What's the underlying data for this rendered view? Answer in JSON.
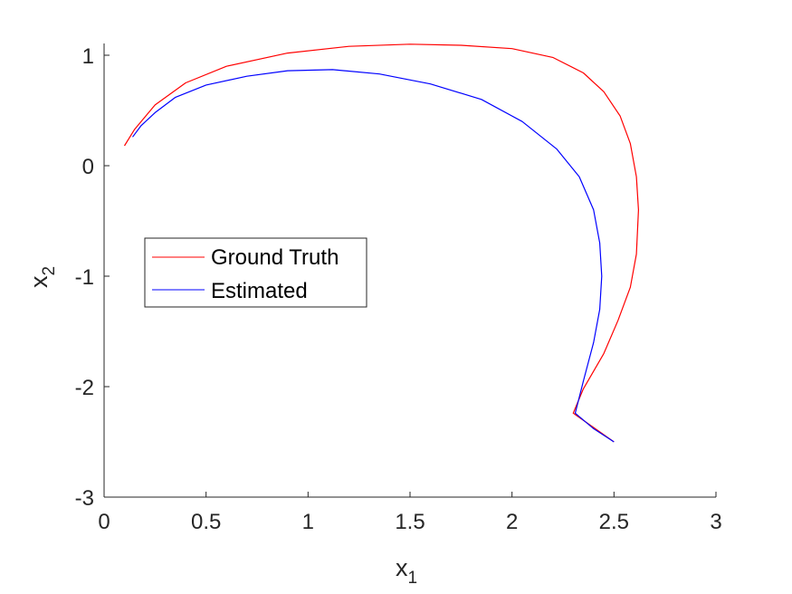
{
  "chart_data": {
    "type": "line",
    "xlabel": "x",
    "xlabel_sub": "1",
    "ylabel": "x",
    "ylabel_sub": "2",
    "xlim": [
      0,
      3
    ],
    "ylim": [
      -3,
      1.1
    ],
    "xticks": [
      0,
      0.5,
      1,
      1.5,
      2,
      2.5,
      3
    ],
    "xtick_labels": [
      "0",
      "0.5",
      "1",
      "1.5",
      "2",
      "2.5",
      "3"
    ],
    "yticks": [
      -3,
      -2,
      -1,
      0,
      1
    ],
    "ytick_labels": [
      "-3",
      "-2",
      "-1",
      "0",
      "1"
    ],
    "grid": false,
    "legend_position": "middle-left",
    "series": [
      {
        "name": "Ground Truth",
        "color": "#ff0000",
        "x": [
          2.5,
          2.4,
          2.3,
          2.35,
          2.45,
          2.52,
          2.58,
          2.61,
          2.62,
          2.61,
          2.58,
          2.53,
          2.45,
          2.35,
          2.2,
          2.0,
          1.75,
          1.5,
          1.2,
          0.9,
          0.6,
          0.4,
          0.25,
          0.15,
          0.1
        ],
        "y": [
          -2.5,
          -2.37,
          -2.24,
          -2.02,
          -1.7,
          -1.4,
          -1.1,
          -0.8,
          -0.4,
          -0.1,
          0.2,
          0.45,
          0.67,
          0.84,
          0.98,
          1.06,
          1.09,
          1.1,
          1.08,
          1.02,
          0.9,
          0.75,
          0.55,
          0.33,
          0.18
        ]
      },
      {
        "name": "Estimated",
        "color": "#0000ff",
        "x": [
          2.5,
          2.4,
          2.31,
          2.35,
          2.4,
          2.43,
          2.44,
          2.43,
          2.4,
          2.33,
          2.22,
          2.05,
          1.85,
          1.6,
          1.35,
          1.12,
          0.9,
          0.7,
          0.5,
          0.35,
          0.25,
          0.18,
          0.14
        ],
        "y": [
          -2.5,
          -2.38,
          -2.24,
          -1.95,
          -1.6,
          -1.3,
          -1.0,
          -0.7,
          -0.4,
          -0.1,
          0.15,
          0.4,
          0.6,
          0.74,
          0.83,
          0.87,
          0.86,
          0.81,
          0.73,
          0.62,
          0.48,
          0.36,
          0.26
        ]
      }
    ]
  }
}
